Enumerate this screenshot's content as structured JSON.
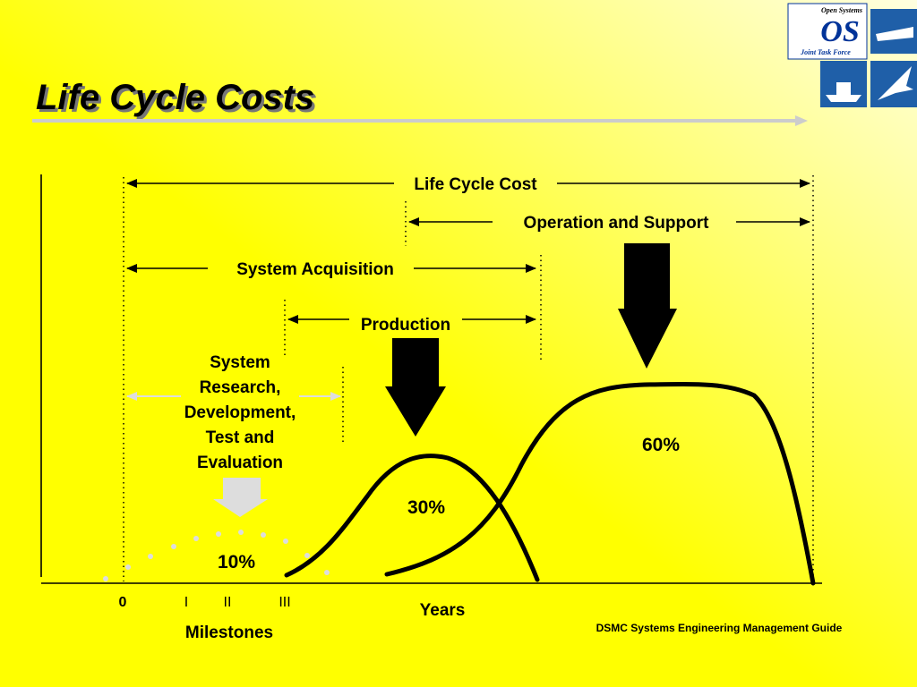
{
  "header": {
    "title": "Life Cycle Costs"
  },
  "logo": {
    "top": "Open Systems",
    "mark": "OS",
    "bottom": "Joint Task Force"
  },
  "spans": [
    "Life Cycle Cost",
    "Operation and Support",
    "System Acquisition",
    "Production"
  ],
  "phase_label": [
    "System",
    "Research,",
    "Development,",
    "Test and",
    "Evaluation"
  ],
  "shares": [
    "10%",
    "30%",
    "60%"
  ],
  "axis": {
    "milestones": [
      "0",
      "I",
      "II",
      "III"
    ],
    "milestones_title": "Milestones",
    "x_title": "Years"
  },
  "source": "DSMC Systems Engineering Management Guide"
}
